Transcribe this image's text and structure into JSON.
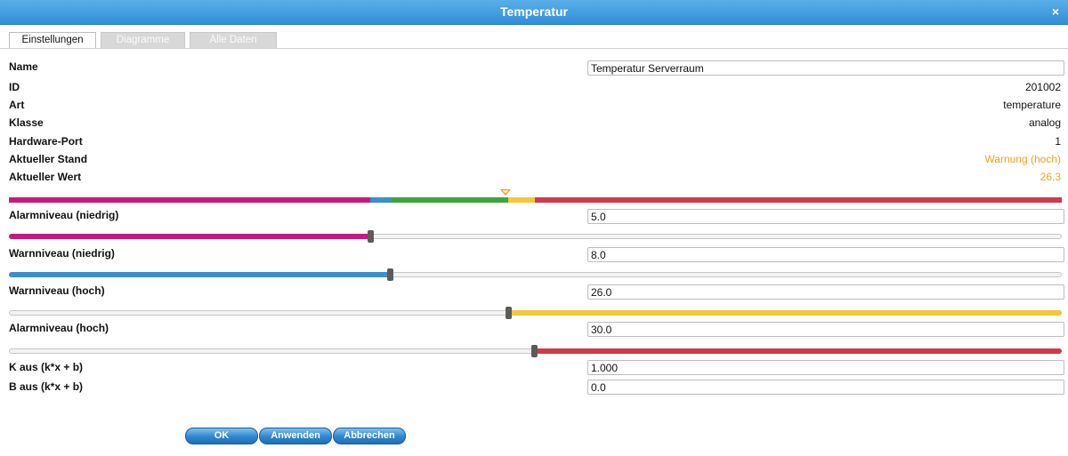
{
  "window": {
    "title": "Temperatur",
    "close_label": "×"
  },
  "tabs": [
    {
      "label": "Einstellungen",
      "active": true
    },
    {
      "label": "Diagramme",
      "active": false
    },
    {
      "label": "Alle Daten",
      "active": false
    }
  ],
  "fields": {
    "name": {
      "label": "Name",
      "value": "Temperatur Serverraum"
    },
    "id": {
      "label": "ID",
      "value": "201002"
    },
    "art": {
      "label": "Art",
      "value": "temperature"
    },
    "klasse": {
      "label": "Klasse",
      "value": "analog"
    },
    "hardware_port": {
      "label": "Hardware-Port",
      "value": "1"
    },
    "aktueller_stand": {
      "label": "Aktueller Stand",
      "value": "Warnung (hoch)"
    },
    "aktueller_wert": {
      "label": "Aktueller Wert",
      "value": "26.3"
    }
  },
  "thresholds": {
    "alarm_low": {
      "label": "Alarmniveau (niedrig)",
      "value": "5.0"
    },
    "warn_low": {
      "label": "Warnniveau (niedrig)",
      "value": "8.0"
    },
    "warn_high": {
      "label": "Warnniveau (hoch)",
      "value": "26.0"
    },
    "alarm_high": {
      "label": "Alarmniveau (hoch)",
      "value": "30.0"
    }
  },
  "calibration": {
    "k": {
      "label": "K aus (k*x + b)",
      "value": "1.000"
    },
    "b": {
      "label": "B aus (k*x + b)",
      "value": "0.0"
    }
  },
  "buttons": {
    "ok": "OK",
    "apply": "Anwenden",
    "cancel": "Abbrechen"
  },
  "colors": {
    "alarm_low": "#c8197c",
    "warn_low": "#3a8fcc",
    "normal": "#3fa63c",
    "warn_high": "#f5c63a",
    "alarm_high": "#d03a4a",
    "warning_text": "#f0a020"
  }
}
